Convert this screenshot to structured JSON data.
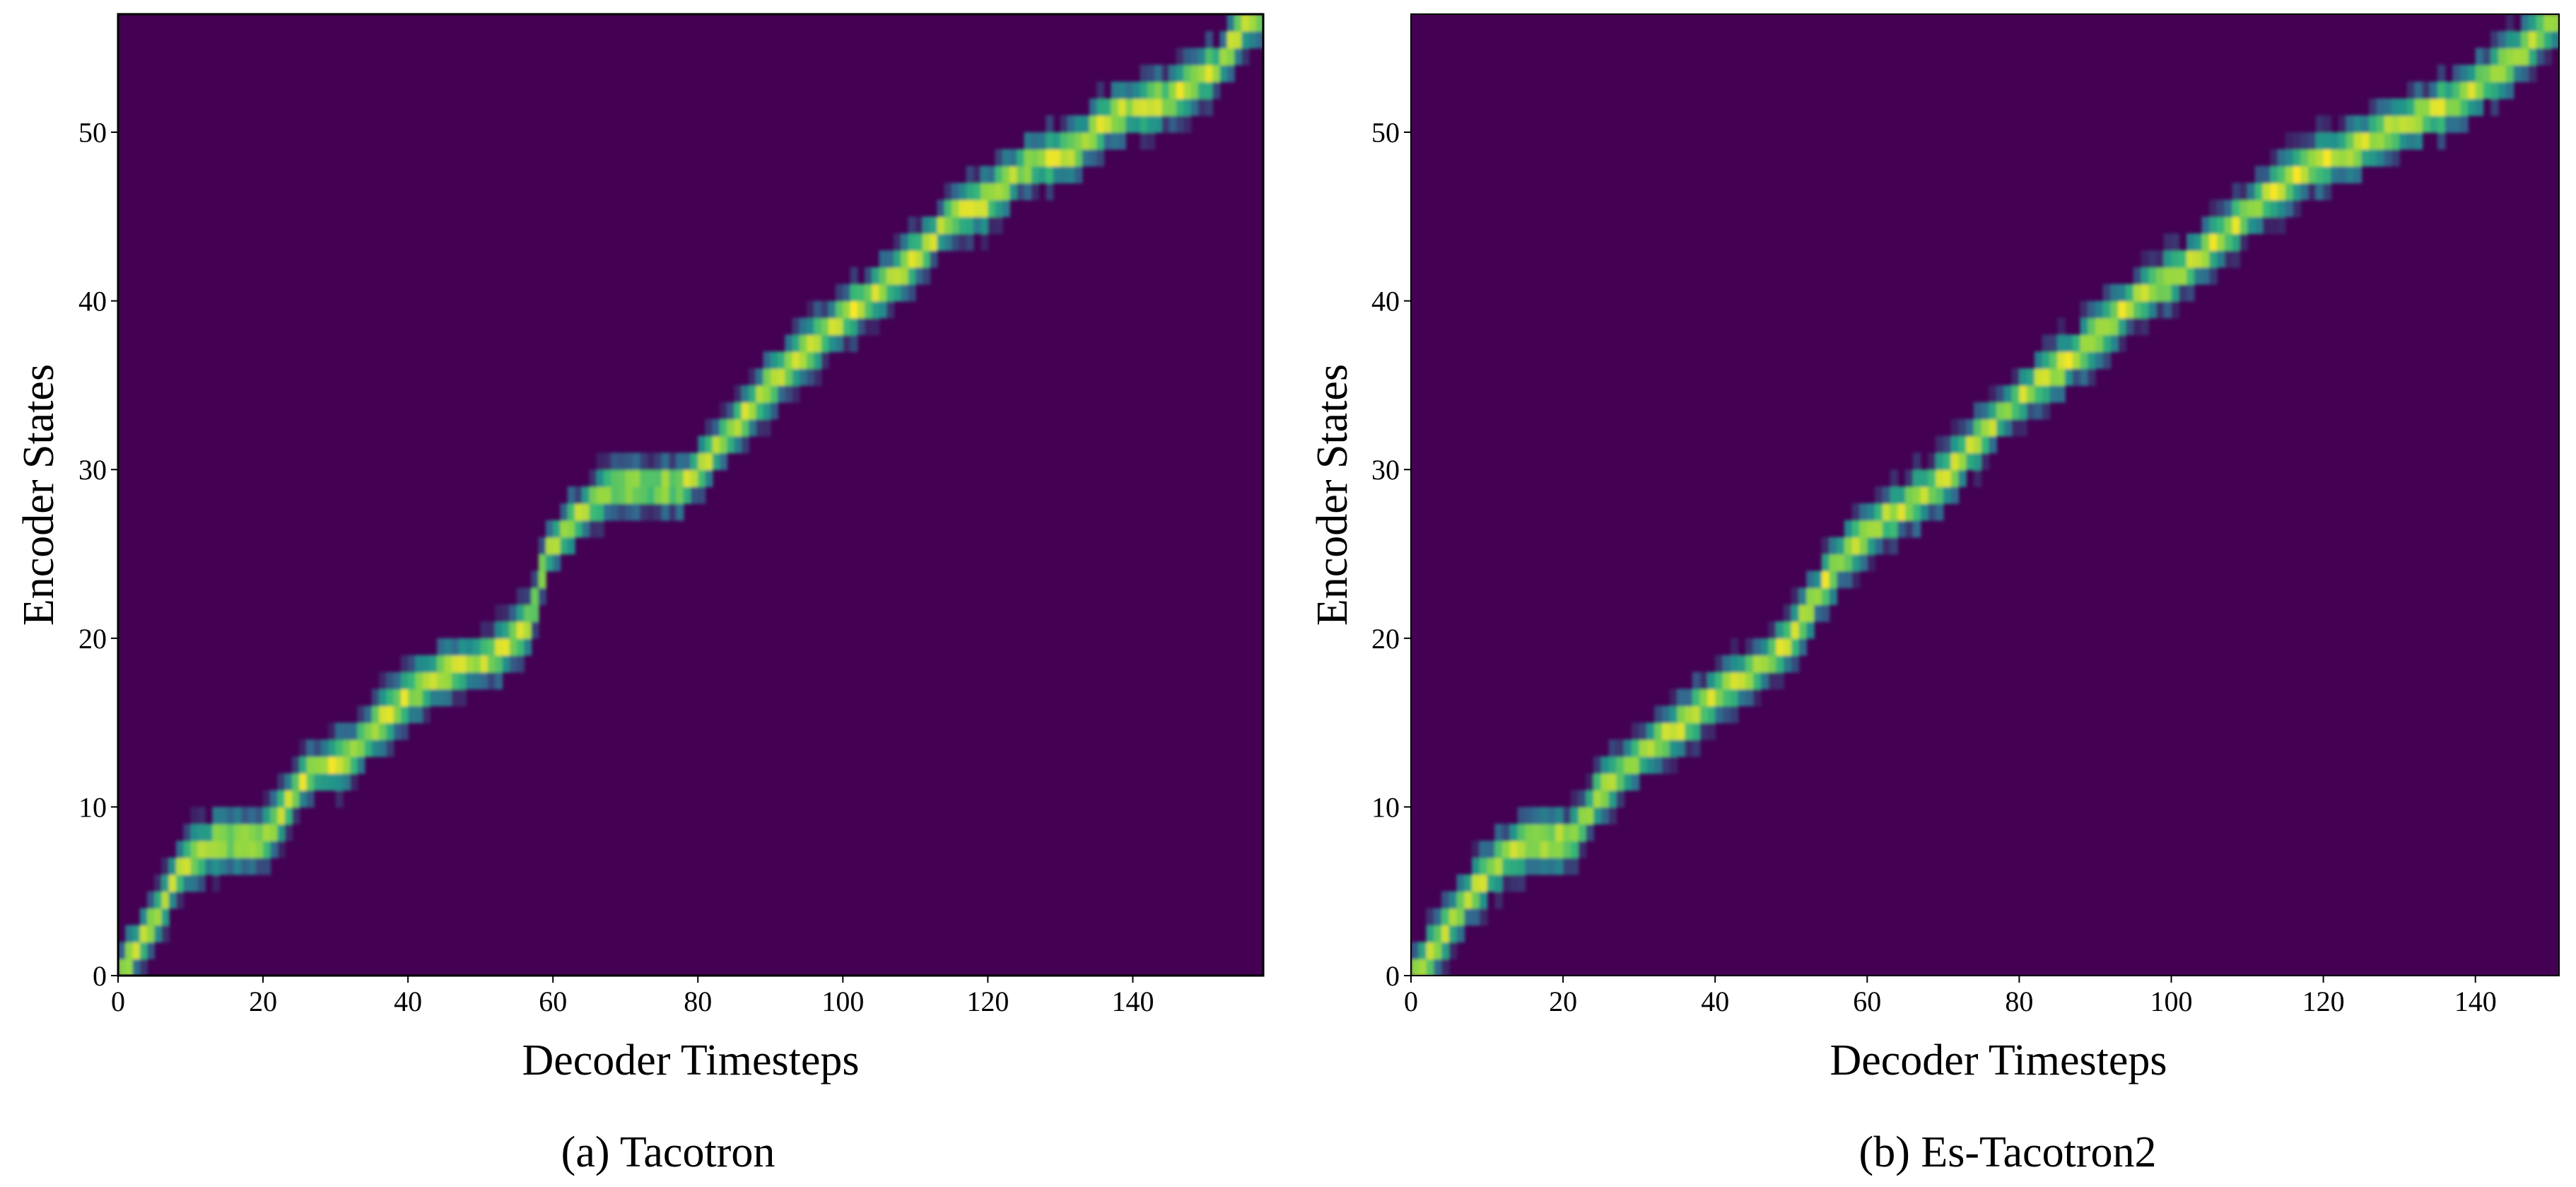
{
  "chart_data": [
    {
      "type": "heatmap",
      "caption": "(a) Tacotron",
      "xlabel": "Decoder Timesteps",
      "ylabel": "Encoder States",
      "xlim": [
        0,
        158
      ],
      "ylim": [
        0,
        57
      ],
      "xticks": [
        0,
        20,
        40,
        60,
        80,
        100,
        120,
        140
      ],
      "yticks": [
        0,
        10,
        20,
        30,
        40,
        50
      ],
      "colormap": [
        "#440154",
        "#31688e",
        "#21918c",
        "#35b779",
        "#90d743",
        "#fde725"
      ],
      "background_color": "#440154",
      "alignment_path": [
        [
          0,
          0
        ],
        [
          3,
          2
        ],
        [
          6,
          4
        ],
        [
          8,
          6
        ],
        [
          10,
          7
        ],
        [
          14,
          8
        ],
        [
          20,
          8
        ],
        [
          23,
          10
        ],
        [
          26,
          12
        ],
        [
          32,
          13
        ],
        [
          36,
          15
        ],
        [
          41,
          17
        ],
        [
          45,
          18
        ],
        [
          52,
          19
        ],
        [
          57,
          21
        ],
        [
          59,
          25
        ],
        [
          63,
          27
        ],
        [
          68,
          29
        ],
        [
          78,
          29
        ],
        [
          82,
          31
        ],
        [
          86,
          33
        ],
        [
          92,
          36
        ],
        [
          100,
          39
        ],
        [
          106,
          41
        ],
        [
          111,
          43
        ],
        [
          115,
          45
        ],
        [
          120,
          46
        ],
        [
          125,
          48
        ],
        [
          132,
          49
        ],
        [
          137,
          51
        ],
        [
          145,
          52
        ],
        [
          152,
          54
        ],
        [
          156,
          57
        ]
      ]
    },
    {
      "type": "heatmap",
      "caption": "(b) Es-Tacotron2",
      "xlabel": "Decoder Timesteps",
      "ylabel": "Encoder States",
      "xlim": [
        0,
        151
      ],
      "ylim": [
        0,
        57
      ],
      "xticks": [
        0,
        20,
        40,
        60,
        80,
        100,
        120,
        140
      ],
      "yticks": [
        0,
        10,
        20,
        30,
        40,
        50
      ],
      "colormap": [
        "#440154",
        "#31688e",
        "#21918c",
        "#35b779",
        "#90d743",
        "#fde725"
      ],
      "background_color": "#440154",
      "alignment_path": [
        [
          0,
          0
        ],
        [
          2,
          1
        ],
        [
          5,
          3
        ],
        [
          8,
          5
        ],
        [
          12,
          7
        ],
        [
          16,
          8
        ],
        [
          21,
          8
        ],
        [
          25,
          11
        ],
        [
          30,
          13
        ],
        [
          36,
          15
        ],
        [
          41,
          17
        ],
        [
          45,
          18
        ],
        [
          50,
          20
        ],
        [
          54,
          23
        ],
        [
          57,
          25
        ],
        [
          62,
          27
        ],
        [
          69,
          29
        ],
        [
          73,
          31
        ],
        [
          77,
          33
        ],
        [
          82,
          35
        ],
        [
          88,
          37
        ],
        [
          95,
          40
        ],
        [
          102,
          42
        ],
        [
          107,
          44
        ],
        [
          112,
          46
        ],
        [
          118,
          48
        ],
        [
          124,
          49
        ],
        [
          128,
          50
        ],
        [
          133,
          51
        ],
        [
          138,
          52
        ],
        [
          144,
          54
        ],
        [
          151,
          57
        ]
      ]
    }
  ]
}
